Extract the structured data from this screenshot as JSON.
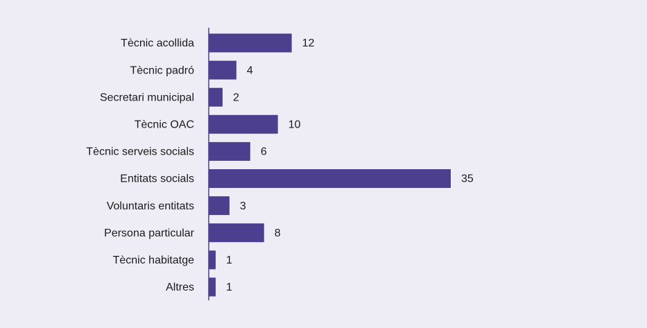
{
  "chart_data": {
    "type": "bar",
    "orientation": "horizontal",
    "categories": [
      "Tècnic acollida",
      "Tècnic padró",
      "Secretari municipal",
      "Tècnic OAC",
      "Tècnic serveis socials",
      "Entitats socials",
      "Voluntaris entitats",
      "Persona particular",
      "Tècnic habitatge",
      "Altres"
    ],
    "values": [
      12,
      4,
      2,
      10,
      6,
      35,
      3,
      8,
      1,
      1
    ],
    "color": "#4b3f8e"
  }
}
